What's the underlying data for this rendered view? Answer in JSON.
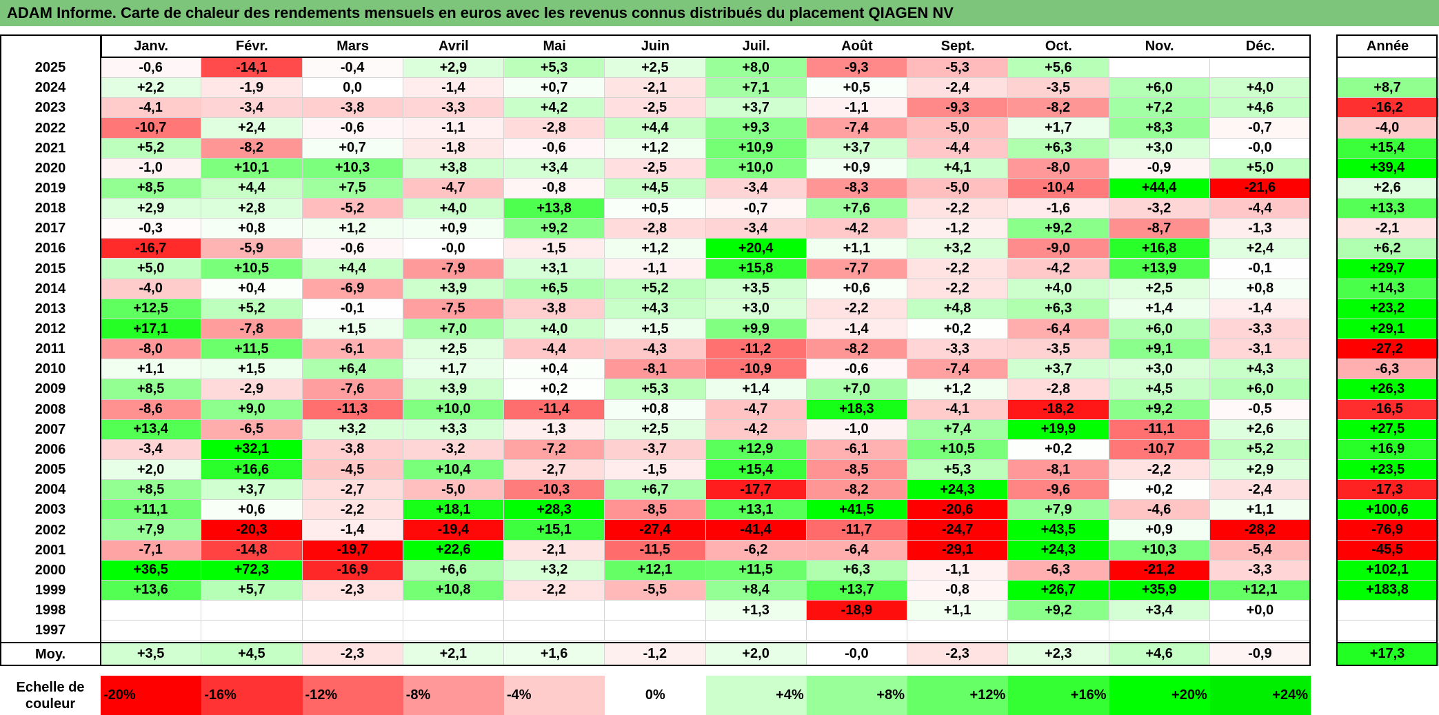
{
  "title": "ADAM Informe. Carte de chaleur des rendements mensuels en euros avec les revenus connus distribués du placement QIAGEN NV",
  "chart_data": {
    "type": "heatmap",
    "columns": [
      "Janv.",
      "Févr.",
      "Mars",
      "Avril",
      "Mai",
      "Juin",
      "Juil.",
      "Août",
      "Sept.",
      "Oct.",
      "Nov.",
      "Déc."
    ],
    "year_header": "Année",
    "rows": [
      {
        "year": "2025",
        "values": [
          "-0,6",
          "-14,1",
          "-0,4",
          "+2,9",
          "+5,3",
          "+2,5",
          "+8,0",
          "-9,3",
          "-5,3",
          "+5,6",
          "",
          ""
        ],
        "annual": ""
      },
      {
        "year": "2024",
        "values": [
          "+2,2",
          "-1,9",
          "0,0",
          "-1,4",
          "+0,7",
          "-2,1",
          "+7,1",
          "+0,5",
          "-2,4",
          "-3,5",
          "+6,0",
          "+4,0"
        ],
        "annual": "+8,7"
      },
      {
        "year": "2023",
        "values": [
          "-4,1",
          "-3,4",
          "-3,8",
          "-3,3",
          "+4,2",
          "-2,5",
          "+3,7",
          "-1,1",
          "-9,3",
          "-8,2",
          "+7,2",
          "+4,6"
        ],
        "annual": "-16,2"
      },
      {
        "year": "2022",
        "values": [
          "-10,7",
          "+2,4",
          "-0,6",
          "-1,1",
          "-2,8",
          "+4,4",
          "+9,3",
          "-7,4",
          "-5,0",
          "+1,7",
          "+8,3",
          "-0,7"
        ],
        "annual": "-4,0"
      },
      {
        "year": "2021",
        "values": [
          "+5,2",
          "-8,2",
          "+0,7",
          "-1,8",
          "-0,6",
          "+1,2",
          "+10,9",
          "+3,7",
          "-4,4",
          "+6,3",
          "+3,0",
          "-0,0"
        ],
        "annual": "+15,4"
      },
      {
        "year": "2020",
        "values": [
          "-1,0",
          "+10,1",
          "+10,3",
          "+3,8",
          "+3,4",
          "-2,5",
          "+10,0",
          "+0,9",
          "+4,1",
          "-8,0",
          "-0,9",
          "+5,0"
        ],
        "annual": "+39,4"
      },
      {
        "year": "2019",
        "values": [
          "+8,5",
          "+4,4",
          "+7,5",
          "-4,7",
          "-0,8",
          "+4,5",
          "-3,4",
          "-8,3",
          "-5,0",
          "-10,4",
          "+44,4",
          "-21,6"
        ],
        "annual": "+2,6"
      },
      {
        "year": "2018",
        "values": [
          "+2,9",
          "+2,8",
          "-5,2",
          "+4,0",
          "+13,8",
          "+0,5",
          "-0,7",
          "+7,6",
          "-2,2",
          "-1,6",
          "-3,2",
          "-4,4"
        ],
        "annual": "+13,3"
      },
      {
        "year": "2017",
        "values": [
          "-0,3",
          "+0,8",
          "+1,2",
          "+0,9",
          "+9,2",
          "-2,8",
          "-3,4",
          "-4,2",
          "-1,2",
          "+9,2",
          "-8,7",
          "-1,3"
        ],
        "annual": "-2,1"
      },
      {
        "year": "2016",
        "values": [
          "-16,7",
          "-5,9",
          "-0,6",
          "-0,0",
          "-1,5",
          "+1,2",
          "+20,4",
          "+1,1",
          "+3,2",
          "-9,0",
          "+16,8",
          "+2,4"
        ],
        "annual": "+6,2"
      },
      {
        "year": "2015",
        "values": [
          "+5,0",
          "+10,5",
          "+4,4",
          "-7,9",
          "+3,1",
          "-1,1",
          "+15,8",
          "-7,7",
          "-2,2",
          "-4,2",
          "+13,9",
          "-0,1"
        ],
        "annual": "+29,7"
      },
      {
        "year": "2014",
        "values": [
          "-4,0",
          "+0,4",
          "-6,9",
          "+3,9",
          "+6,5",
          "+5,2",
          "+3,5",
          "+0,6",
          "-2,2",
          "+4,0",
          "+2,5",
          "+0,8"
        ],
        "annual": "+14,3"
      },
      {
        "year": "2013",
        "values": [
          "+12,5",
          "+5,2",
          "-0,1",
          "-7,5",
          "-3,8",
          "+4,3",
          "+3,0",
          "-2,2",
          "+4,8",
          "+6,3",
          "+1,4",
          "-1,4"
        ],
        "annual": "+23,2"
      },
      {
        "year": "2012",
        "values": [
          "+17,1",
          "-7,8",
          "+1,5",
          "+7,0",
          "+4,0",
          "+1,5",
          "+9,9",
          "-1,4",
          "+0,2",
          "-6,4",
          "+6,0",
          "-3,3"
        ],
        "annual": "+29,1"
      },
      {
        "year": "2011",
        "values": [
          "-8,0",
          "+11,5",
          "-6,1",
          "+2,5",
          "-4,4",
          "-4,3",
          "-11,2",
          "-8,2",
          "-3,3",
          "-3,5",
          "+9,1",
          "-3,1"
        ],
        "annual": "-27,2"
      },
      {
        "year": "2010",
        "values": [
          "+1,1",
          "+1,5",
          "+6,4",
          "+1,7",
          "+0,4",
          "-8,1",
          "-10,9",
          "-0,6",
          "-7,4",
          "+3,7",
          "+3,0",
          "+4,3"
        ],
        "annual": "-6,3"
      },
      {
        "year": "2009",
        "values": [
          "+8,5",
          "-2,9",
          "-7,6",
          "+3,9",
          "+0,2",
          "+5,3",
          "+1,4",
          "+7,0",
          "+1,2",
          "-2,8",
          "+4,5",
          "+6,0"
        ],
        "annual": "+26,3"
      },
      {
        "year": "2008",
        "values": [
          "-8,6",
          "+9,0",
          "-11,3",
          "+10,0",
          "-11,4",
          "+0,8",
          "-4,7",
          "+18,3",
          "-4,1",
          "-18,2",
          "+9,2",
          "-0,5"
        ],
        "annual": "-16,5"
      },
      {
        "year": "2007",
        "values": [
          "+13,4",
          "-6,5",
          "+3,2",
          "+3,3",
          "-1,3",
          "+2,5",
          "-4,2",
          "-1,0",
          "+7,4",
          "+19,9",
          "-11,1",
          "+2,6"
        ],
        "annual": "+27,5"
      },
      {
        "year": "2006",
        "values": [
          "-3,4",
          "+32,1",
          "-3,8",
          "-3,2",
          "-7,2",
          "-3,7",
          "+12,9",
          "-6,1",
          "+10,5",
          "+0,2",
          "-10,7",
          "+5,2"
        ],
        "annual": "+16,9"
      },
      {
        "year": "2005",
        "values": [
          "+2,0",
          "+16,6",
          "-4,5",
          "+10,4",
          "-2,7",
          "-1,5",
          "+15,4",
          "-8,5",
          "+5,3",
          "-8,1",
          "-2,2",
          "+2,9"
        ],
        "annual": "+23,5"
      },
      {
        "year": "2004",
        "values": [
          "+8,5",
          "+3,7",
          "-2,7",
          "-5,0",
          "-10,3",
          "+6,7",
          "-17,7",
          "-8,2",
          "+24,3",
          "-9,6",
          "+0,2",
          "-2,4"
        ],
        "annual": "-17,3"
      },
      {
        "year": "2003",
        "values": [
          "+11,1",
          "+0,6",
          "-2,2",
          "+18,1",
          "+28,3",
          "-8,5",
          "+13,1",
          "+41,5",
          "-20,6",
          "+7,9",
          "-4,6",
          "+1,1"
        ],
        "annual": "+100,6"
      },
      {
        "year": "2002",
        "values": [
          "+7,9",
          "-20,3",
          "-1,4",
          "-19,4",
          "+15,1",
          "-27,4",
          "-41,4",
          "-11,7",
          "-24,7",
          "+43,5",
          "+0,9",
          "-28,2"
        ],
        "annual": "-76,9"
      },
      {
        "year": "2001",
        "values": [
          "-7,1",
          "-14,8",
          "-19,7",
          "+22,6",
          "-2,1",
          "-11,5",
          "-6,2",
          "-6,4",
          "-29,1",
          "+24,3",
          "+10,3",
          "-5,4"
        ],
        "annual": "-45,5"
      },
      {
        "year": "2000",
        "values": [
          "+36,5",
          "+72,3",
          "-16,9",
          "+6,6",
          "+3,2",
          "+12,1",
          "+11,5",
          "+6,3",
          "-1,1",
          "-6,3",
          "-21,2",
          "-3,3"
        ],
        "annual": "+102,1"
      },
      {
        "year": "1999",
        "values": [
          "+13,6",
          "+5,7",
          "-2,3",
          "+10,8",
          "-2,2",
          "-5,5",
          "+8,4",
          "+13,7",
          "-0,8",
          "+26,7",
          "+35,9",
          "+12,1"
        ],
        "annual": "+183,8"
      },
      {
        "year": "1998",
        "values": [
          "",
          "",
          "",
          "",
          "",
          "",
          "+1,3",
          "-18,9",
          "+1,1",
          "+9,2",
          "+3,4",
          "+0,0"
        ],
        "annual": ""
      },
      {
        "year": "1997",
        "values": [
          "",
          "",
          "",
          "",
          "",
          "",
          "",
          "",
          "",
          "",
          "",
          ""
        ],
        "annual": ""
      }
    ],
    "average": {
      "label": "Moy.",
      "values": [
        "+3,5",
        "+4,5",
        "-2,3",
        "+2,1",
        "+1,6",
        "-1,2",
        "+2,0",
        "-0,0",
        "-2,3",
        "+2,3",
        "+4,6",
        "-0,9"
      ],
      "annual": "+17,3"
    },
    "color_scale": {
      "label_line1": "Echelle de",
      "label_line2": "couleur",
      "stops": [
        {
          "label": "-20%",
          "value": -20,
          "color": "#ff0000"
        },
        {
          "label": "-16%",
          "value": -16,
          "color": "#ff3333"
        },
        {
          "label": "-12%",
          "value": -12,
          "color": "#ff6666"
        },
        {
          "label": "-8%",
          "value": -8,
          "color": "#ff9999"
        },
        {
          "label": "-4%",
          "value": -4,
          "color": "#ffcccc"
        },
        {
          "label": "0%",
          "value": 0,
          "color": "#ffffff"
        },
        {
          "label": "+4%",
          "value": 4,
          "color": "#ccffcc"
        },
        {
          "label": "+8%",
          "value": 8,
          "color": "#99ff99"
        },
        {
          "label": "+12%",
          "value": 12,
          "color": "#66ff66"
        },
        {
          "label": "+16%",
          "value": 16,
          "color": "#33ff33"
        },
        {
          "label": "+20%",
          "value": 20,
          "color": "#00ff00"
        },
        {
          "label": "+24%",
          "value": 24,
          "color": "#00ee00"
        }
      ]
    },
    "colors": {
      "title_bar": "#7dc57a",
      "max_negative": "#ff0000",
      "max_positive": "#00ff00"
    }
  }
}
